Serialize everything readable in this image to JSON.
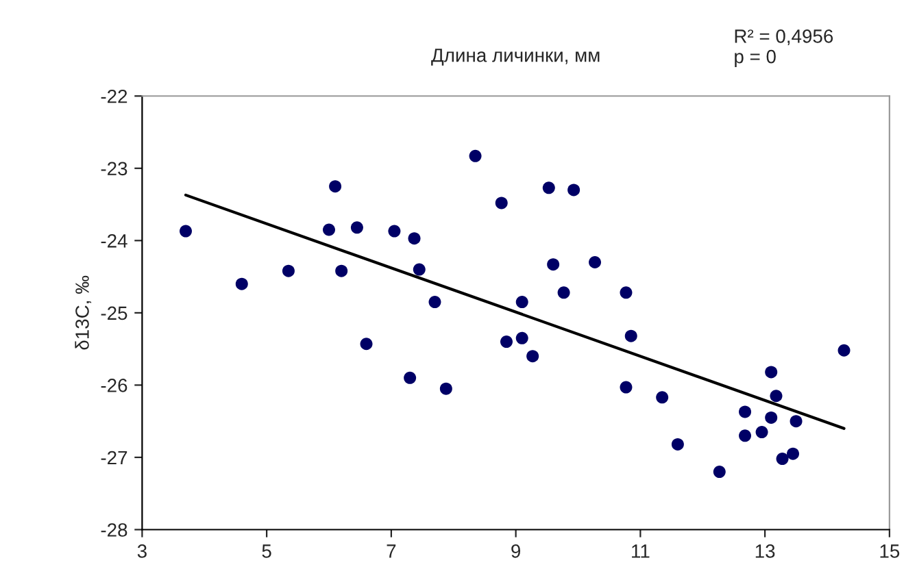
{
  "chart_data": {
    "type": "scatter",
    "title": "Длина личинки, мм",
    "ylabel": "δ13C, ‰",
    "annotations": [
      "R² = 0,4956",
      "p = 0"
    ],
    "xlim": [
      3,
      15
    ],
    "xticks": [
      3,
      5,
      7,
      9,
      11,
      13,
      15
    ],
    "ylim": [
      -28,
      -22
    ],
    "yticks": [
      -28,
      -27,
      -26,
      -25,
      -24,
      -23,
      -22
    ],
    "grid": false,
    "legend": false,
    "marker": "circle",
    "series": [
      {
        "color": "#000066",
        "x": [
          3.7,
          4.6,
          5.35,
          6.0,
          6.1,
          6.2,
          6.45,
          6.6,
          7.05,
          7.3,
          7.37,
          7.45,
          7.7,
          7.88,
          8.35,
          8.77,
          8.85,
          9.1,
          9.1,
          9.27,
          9.53,
          9.6,
          9.77,
          9.93,
          10.27,
          10.77,
          10.85,
          10.77,
          11.35,
          11.6,
          12.27,
          12.68,
          12.68,
          12.95,
          13.1,
          13.18,
          13.1,
          13.28,
          13.45,
          13.5,
          14.27
        ],
        "values": [
          -23.87,
          -24.6,
          -24.42,
          -23.85,
          -23.25,
          -24.42,
          -23.82,
          -25.43,
          -23.87,
          -25.9,
          -23.97,
          -24.4,
          -24.85,
          -26.05,
          -22.83,
          -23.48,
          -25.4,
          -24.85,
          -25.35,
          -25.6,
          -23.27,
          -24.33,
          -24.72,
          -23.3,
          -24.3,
          -24.72,
          -25.32,
          -26.03,
          -26.17,
          -26.82,
          -27.2,
          -26.37,
          -26.7,
          -26.65,
          -25.82,
          -26.15,
          -26.45,
          -27.02,
          -26.95,
          -26.5,
          -25.52
        ]
      },
      {
        "type": "line",
        "color": "#000000",
        "marker": "none",
        "line_style": "solid",
        "x": [
          3.7,
          14.27
        ],
        "values": [
          -23.37,
          -26.6
        ]
      }
    ]
  }
}
